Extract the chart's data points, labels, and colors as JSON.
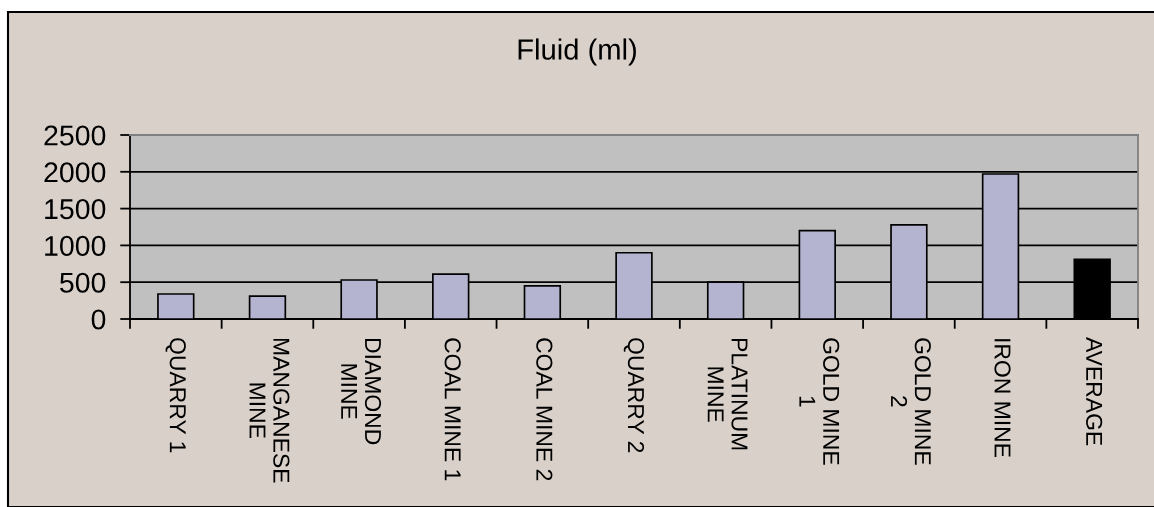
{
  "chart_data": {
    "type": "bar",
    "title": "Fluid (ml)",
    "categories": [
      "QUARRY 1",
      "MANGANESE\nMINE",
      "DIAMOND\nMINE",
      "COAL MINE 1",
      "COAL MINE 2",
      "QUARRY 2",
      "PLATINUM\nMINE",
      "GOLD MINE\n1",
      "GOLD MINE\n2",
      "IRON MINE",
      "AVERAGE"
    ],
    "values": [
      340,
      310,
      530,
      610,
      450,
      900,
      500,
      1200,
      1280,
      1970,
      810
    ],
    "colors": [
      "#b4b4d0",
      "#b4b4d0",
      "#b4b4d0",
      "#b4b4d0",
      "#b4b4d0",
      "#b4b4d0",
      "#b4b4d0",
      "#b4b4d0",
      "#b4b4d0",
      "#b4b4d0",
      "#000000"
    ],
    "ylim": [
      0,
      2500
    ],
    "yticks": [
      0,
      500,
      1000,
      1500,
      2000,
      2500
    ],
    "grid": "y"
  }
}
